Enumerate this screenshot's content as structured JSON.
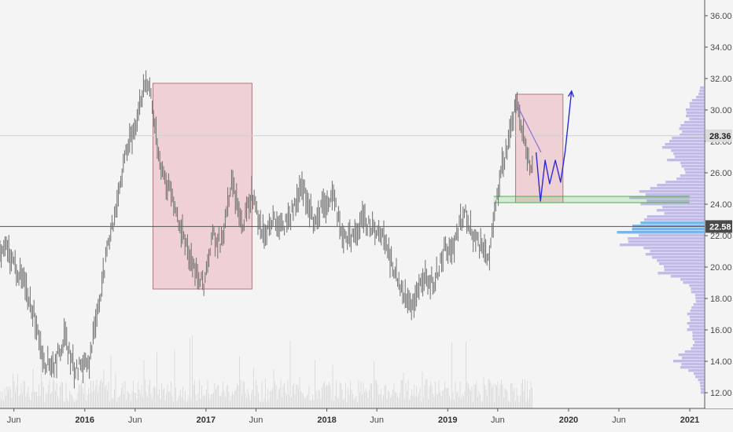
{
  "chart_data": {
    "type": "line",
    "symbol_series": "price",
    "x_ticks": [
      {
        "label": "Jun",
        "date": "2015-06-01",
        "bold": false
      },
      {
        "label": "2016",
        "date": "2016-01-01",
        "bold": true
      },
      {
        "label": "Jun",
        "date": "2016-06-01",
        "bold": false
      },
      {
        "label": "2017",
        "date": "2017-01-01",
        "bold": true
      },
      {
        "label": "Jun",
        "date": "2017-06-01",
        "bold": false
      },
      {
        "label": "2018",
        "date": "2018-01-01",
        "bold": true
      },
      {
        "label": "Jun",
        "date": "2018-06-01",
        "bold": false
      },
      {
        "label": "2019",
        "date": "2019-01-01",
        "bold": true
      },
      {
        "label": "Jun",
        "date": "2019-06-01",
        "bold": false
      },
      {
        "label": "2020",
        "date": "2020-01-01",
        "bold": true
      },
      {
        "label": "Jun",
        "date": "2020-06-01",
        "bold": false
      },
      {
        "label": "2021",
        "date": "2021-01-01",
        "bold": true
      }
    ],
    "y_ticks": [
      "12.00",
      "14.00",
      "16.00",
      "18.00",
      "20.00",
      "22.00",
      "24.00",
      "26.00",
      "28.00",
      "30.00",
      "32.00",
      "34.00",
      "36.00"
    ],
    "ylim": [
      11.0,
      37.0
    ],
    "xlim": [
      "2015-04-20",
      "2021-02-15"
    ],
    "price_series": [
      [
        "2015-04-20",
        20.6
      ],
      [
        "2015-05-10",
        21.2
      ],
      [
        "2015-06-01",
        20.2
      ],
      [
        "2015-07-01",
        19.0
      ],
      [
        "2015-08-01",
        17.0
      ],
      [
        "2015-09-01",
        14.0
      ],
      [
        "2015-10-01",
        13.8
      ],
      [
        "2015-11-01",
        15.5
      ],
      [
        "2015-12-01",
        13.5
      ],
      [
        "2016-01-15",
        14.0
      ],
      [
        "2016-02-10",
        17.5
      ],
      [
        "2016-03-01",
        20.0
      ],
      [
        "2016-04-01",
        23.5
      ],
      [
        "2016-05-01",
        27.0
      ],
      [
        "2016-06-01",
        29.0
      ],
      [
        "2016-06-20",
        31.0
      ],
      [
        "2016-07-15",
        31.7
      ],
      [
        "2016-08-10",
        27.0
      ],
      [
        "2016-09-10",
        25.0
      ],
      [
        "2016-10-10",
        23.0
      ],
      [
        "2016-11-10",
        21.0
      ],
      [
        "2016-12-10",
        19.2
      ],
      [
        "2016-12-25",
        18.8
      ],
      [
        "2017-01-20",
        22.0
      ],
      [
        "2017-02-20",
        21.5
      ],
      [
        "2017-03-20",
        25.5
      ],
      [
        "2017-04-20",
        22.5
      ],
      [
        "2017-05-20",
        24.8
      ],
      [
        "2017-06-20",
        22.0
      ],
      [
        "2017-07-20",
        23.0
      ],
      [
        "2017-08-20",
        22.5
      ],
      [
        "2017-09-20",
        23.5
      ],
      [
        "2017-10-20",
        25.2
      ],
      [
        "2017-11-20",
        23.0
      ],
      [
        "2017-12-20",
        23.8
      ],
      [
        "2018-01-20",
        24.5
      ],
      [
        "2018-02-20",
        22.0
      ],
      [
        "2018-03-20",
        21.8
      ],
      [
        "2018-04-20",
        23.0
      ],
      [
        "2018-05-20",
        22.5
      ],
      [
        "2018-06-20",
        22.0
      ],
      [
        "2018-07-20",
        20.0
      ],
      [
        "2018-08-20",
        18.5
      ],
      [
        "2018-09-20",
        17.4
      ],
      [
        "2018-10-20",
        19.5
      ],
      [
        "2018-11-20",
        19.0
      ],
      [
        "2018-12-20",
        21.0
      ],
      [
        "2019-01-20",
        21.5
      ],
      [
        "2019-02-20",
        23.5
      ],
      [
        "2019-03-20",
        22.0
      ],
      [
        "2019-04-20",
        21.0
      ],
      [
        "2019-05-05",
        20.5
      ],
      [
        "2019-05-20",
        23.0
      ],
      [
        "2019-06-10",
        26.0
      ],
      [
        "2019-07-10",
        28.5
      ],
      [
        "2019-07-28",
        30.5
      ],
      [
        "2019-08-15",
        28.5
      ],
      [
        "2019-09-01",
        27.0
      ],
      [
        "2019-09-15",
        26.0
      ]
    ],
    "horizontal_lines": [
      {
        "name": "last-price",
        "value": 28.36,
        "label": "28.36",
        "color": "#cfcfcf"
      },
      {
        "name": "reference-price",
        "value": 22.58,
        "label": "22.58",
        "color": "#555555"
      }
    ],
    "support_band": {
      "from": 24.1,
      "to": 24.5,
      "x_from": "2019-05-20",
      "x_to": "2020-12-31",
      "color": "#4caf50"
    },
    "boxes": [
      {
        "name": "pink-box-2016",
        "x_from": "2016-07-25",
        "x_to": "2017-05-20",
        "y_from": 18.6,
        "y_to": 31.7,
        "color": "#e9a5ad"
      },
      {
        "name": "pink-box-2019",
        "x_from": "2019-07-25",
        "x_to": "2019-12-15",
        "y_from": 24.1,
        "y_to": 31.0,
        "color": "#e9a5ad"
      }
    ],
    "projection_path": {
      "color": "#2b2bd8",
      "points": [
        [
          "2019-09-25",
          27.3
        ],
        [
          "2019-10-08",
          24.2
        ],
        [
          "2019-10-22",
          26.8
        ],
        [
          "2019-11-05",
          25.3
        ],
        [
          "2019-11-22",
          26.8
        ],
        [
          "2019-12-08",
          25.4
        ],
        [
          "2019-12-22",
          27.4
        ],
        [
          "2020-01-10",
          31.2
        ]
      ]
    },
    "fade_line": {
      "color": "#8a6fd8",
      "points": [
        [
          "2019-08-01",
          30.2
        ],
        [
          "2019-10-10",
          27.3
        ]
      ]
    },
    "volume_profile_color": "#b8b0e0",
    "volume_profile_highlight_color": "#64a8e8",
    "volume_color": "#dcdcdc",
    "grid": false,
    "legend": "none"
  },
  "colors": {
    "background": "#f4f4f4",
    "axis": "#555555",
    "candle": "#6e6e6e"
  }
}
